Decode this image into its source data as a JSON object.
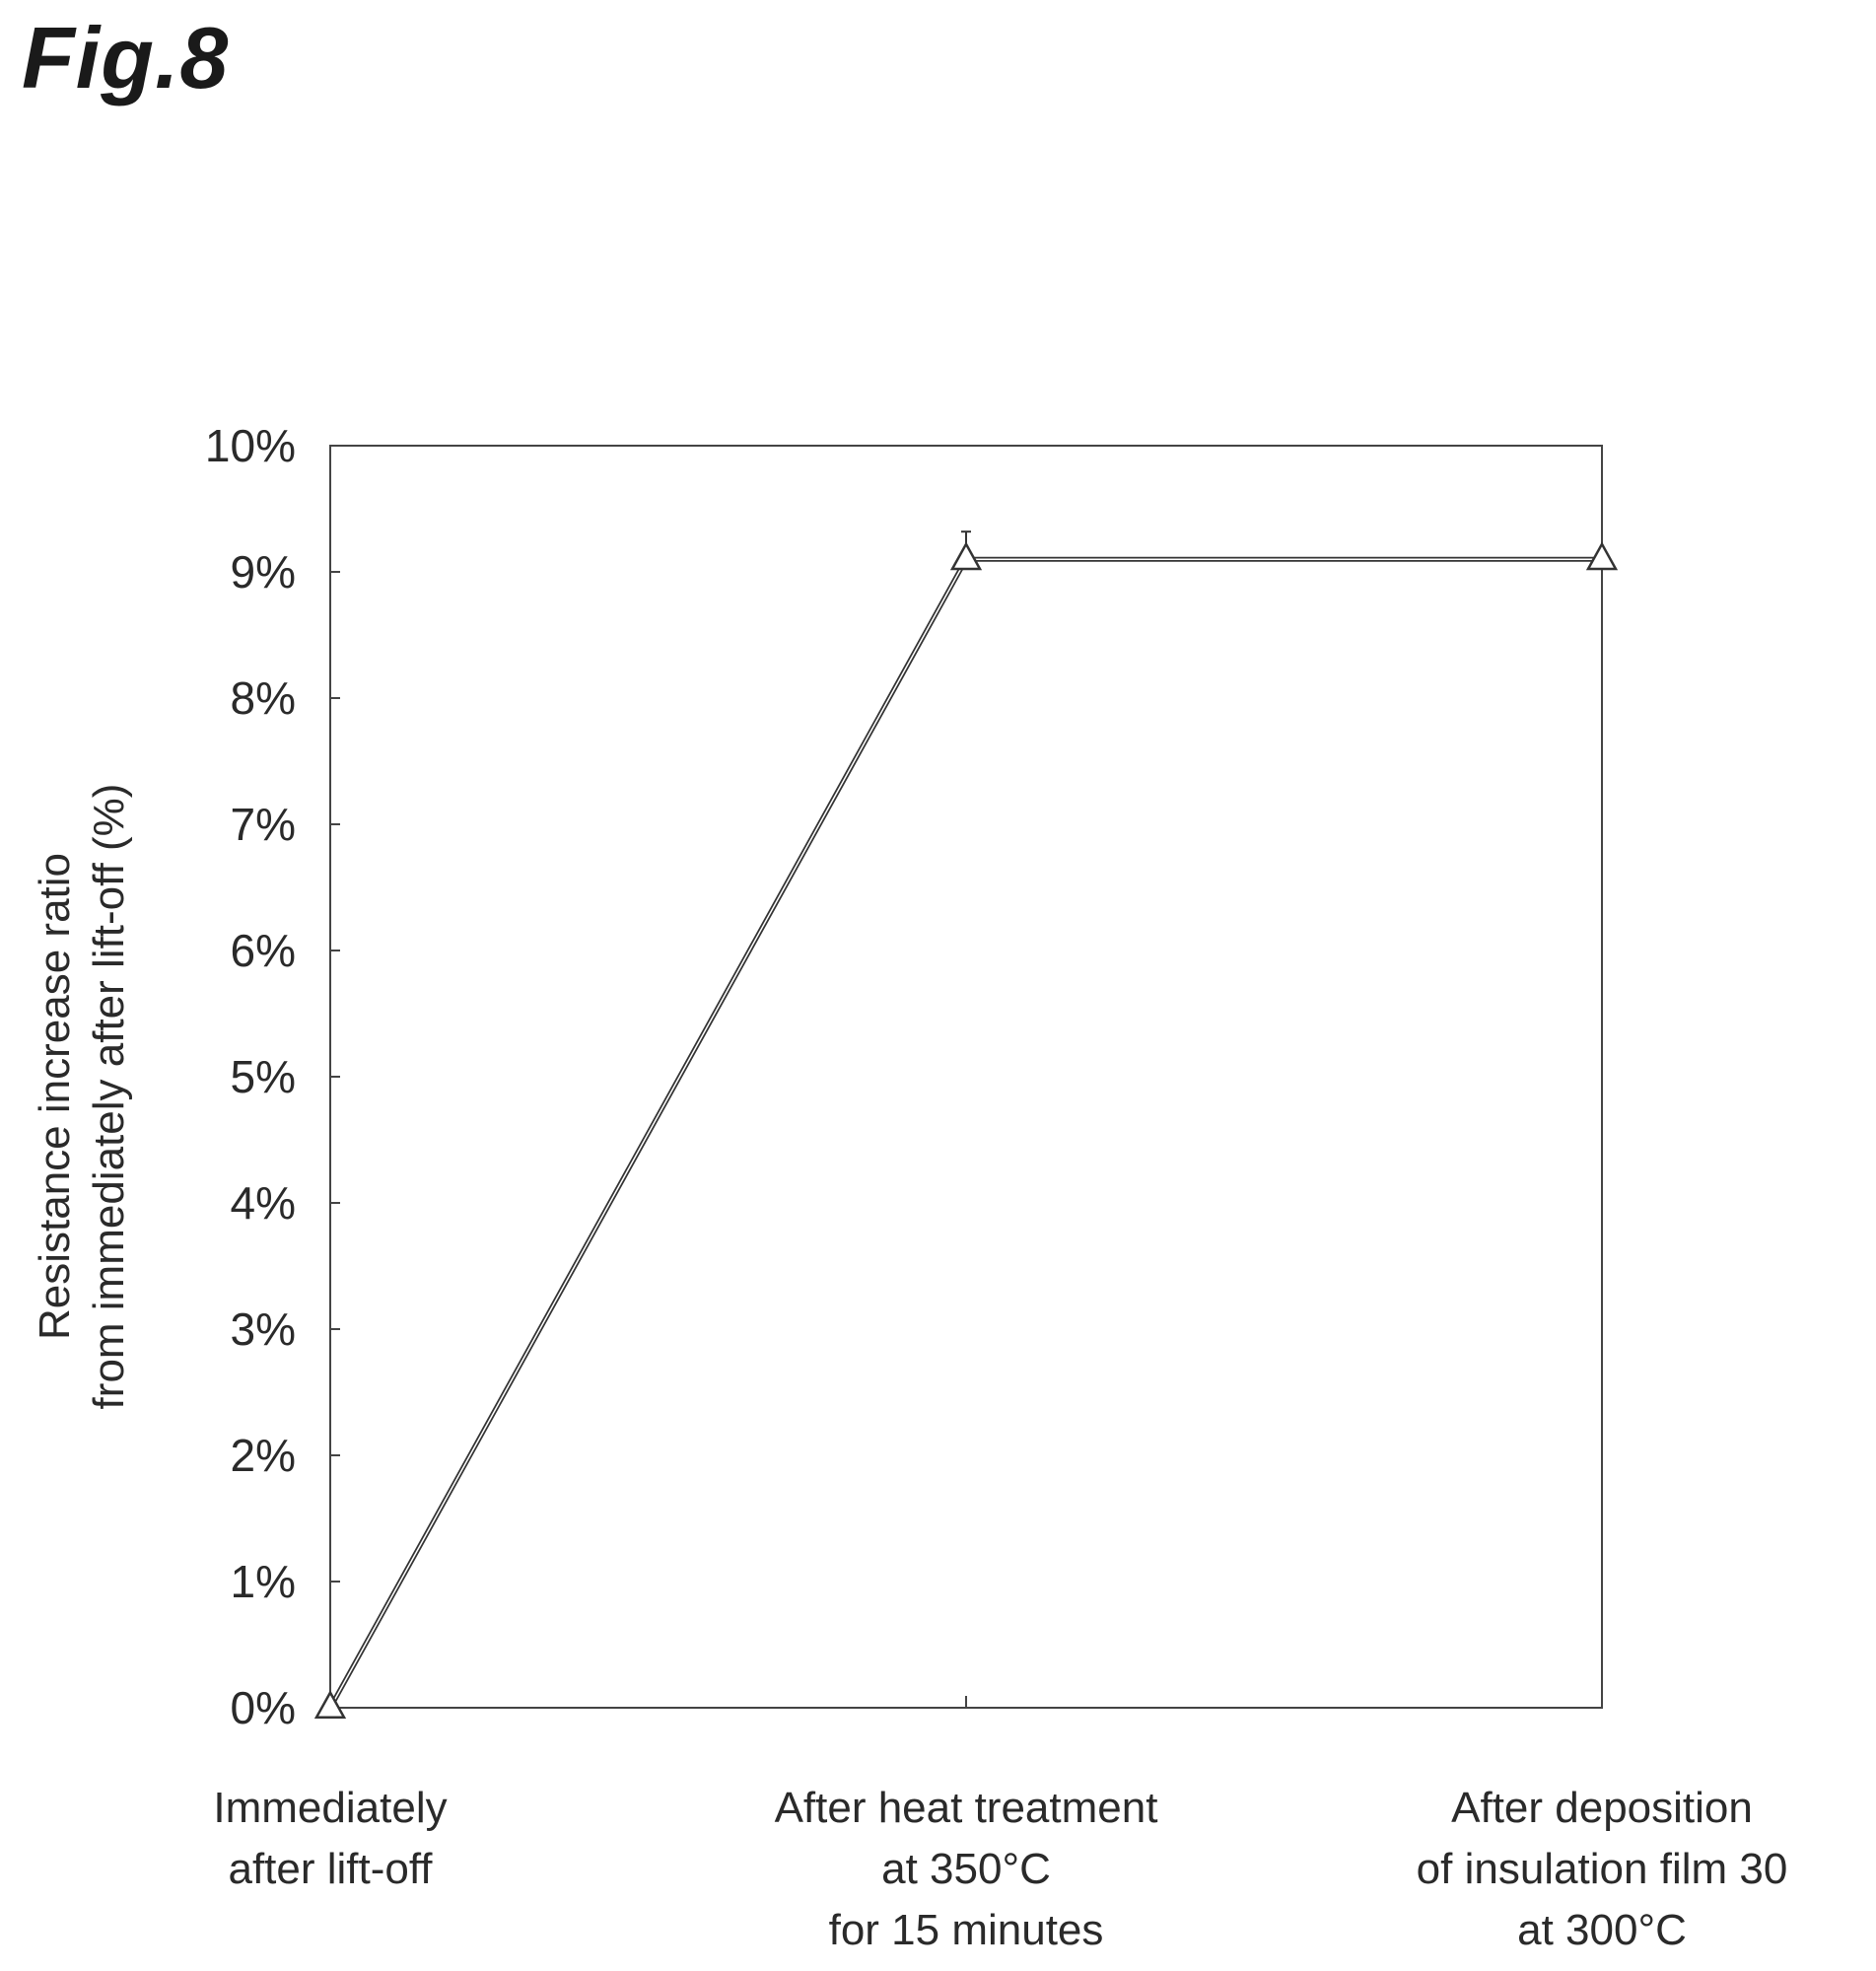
{
  "figure_label": "Fig.8",
  "chart_data": {
    "type": "line",
    "title": "",
    "ylabel": [
      "Resistance increase ratio",
      "from immediately after lift-off (%)"
    ],
    "xlabel": "",
    "categories": [
      [
        "Immediately",
        "after lift-off"
      ],
      [
        "After heat treatment",
        "at 350°C",
        "for 15 minutes"
      ],
      [
        "After deposition",
        "of insulation film 30",
        "at 300°C"
      ]
    ],
    "yticks": [
      "0%",
      "1%",
      "2%",
      "3%",
      "4%",
      "5%",
      "6%",
      "7%",
      "8%",
      "9%",
      "10%"
    ],
    "ylim": [
      0,
      10
    ],
    "grid": false,
    "legend": "none",
    "series": [
      {
        "values": [
          0,
          9.1,
          9.1
        ],
        "marker": "triangle-open"
      }
    ],
    "colors": {
      "line": "#333333",
      "axis": "#444444"
    }
  }
}
